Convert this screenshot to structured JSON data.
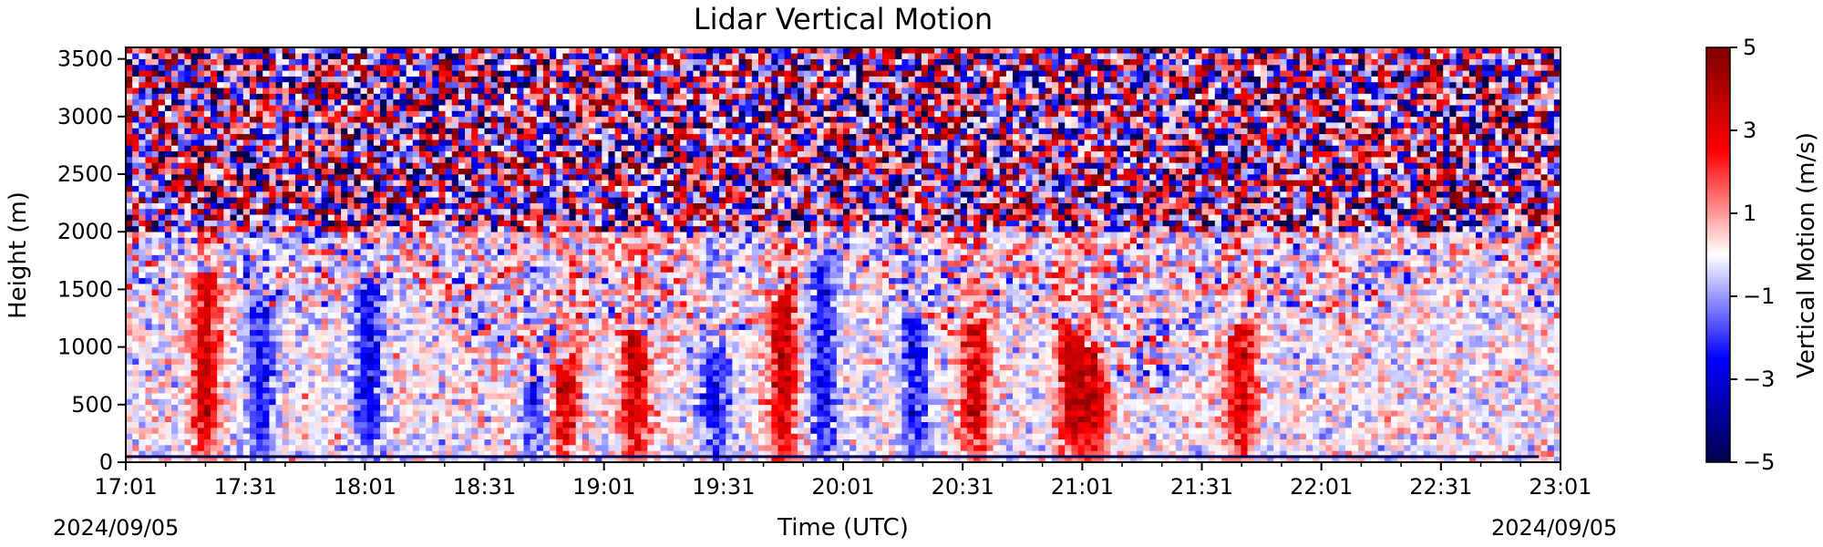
{
  "chart_data": {
    "type": "heatmap",
    "title": "Lidar Vertical Motion",
    "xlabel": "Time (UTC)",
    "ylabel": "Height (m)",
    "x_tick_labels": [
      "17:01",
      "17:31",
      "18:01",
      "18:31",
      "19:01",
      "19:31",
      "20:01",
      "20:31",
      "21:01",
      "21:31",
      "22:01",
      "22:31",
      "23:01"
    ],
    "x_range": [
      "17:01",
      "23:01"
    ],
    "date_start": "2024/09/05",
    "date_end": "2024/09/05",
    "y_ticks": [
      0,
      500,
      1000,
      1500,
      2000,
      2500,
      3000,
      3500
    ],
    "ylim": [
      0,
      3600
    ],
    "colorbar": {
      "label": "Vertical Motion (m/s)",
      "ticks": [
        5,
        3,
        1,
        -1,
        -3,
        -5
      ],
      "range": [
        -5,
        5
      ],
      "colormap": "seismic",
      "colors": [
        "#00004c",
        "#0000ff",
        "#ffffff",
        "#ff0000",
        "#7f0000"
      ]
    },
    "features": {
      "boundary_layer_top_m": 1200,
      "noise_above_m": 2000,
      "updraft_cores_time_utc": [
        "17:21",
        "18:51",
        "19:09",
        "19:46",
        "20:34",
        "20:58",
        "21:04",
        "21:41"
      ],
      "downdraft_cores_time_utc": [
        "17:35",
        "18:02",
        "18:44",
        "19:29",
        "19:56",
        "20:19"
      ]
    },
    "grid": false,
    "legend": "colorbar right"
  }
}
